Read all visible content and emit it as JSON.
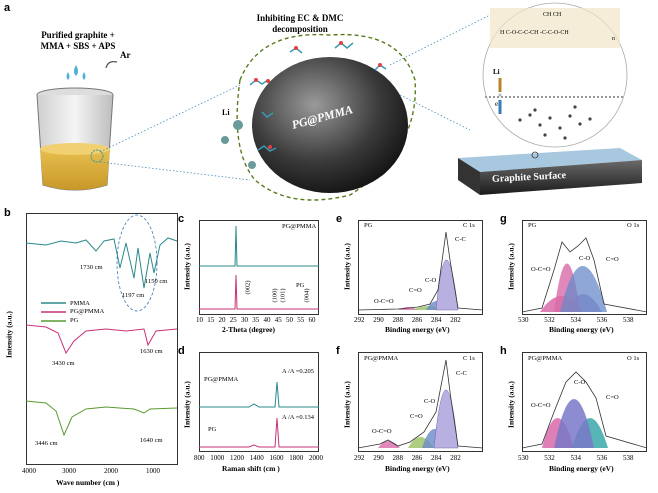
{
  "panels": {
    "a": {
      "letter": "a",
      "beaker_label_line1": "Purified graphite +",
      "beaker_label_line2": "MMA + SBS + APS",
      "gas": "Ar",
      "inhibit_line1": "Inhibiting EC & DMC",
      "inhibit_line2": "decomposition",
      "particle_label": "PG@PMMA",
      "li_label": "Li",
      "surface_label": "Graphite Surface",
      "inset_li": "Li",
      "inset_e": "e",
      "polymer_formula_top": "CH  CH",
      "polymer_formula_mid": "H C-O-C-C-CH -C-C-O-CH",
      "polymer_n": "n"
    },
    "b": {
      "letter": "b",
      "ylabel": "Intensity (a.u.)",
      "xlabel": "Wave number (cm )",
      "xticks": [
        "4000",
        "3000",
        "2000",
        "1000"
      ],
      "legend": [
        "PMMA",
        "PG@PMMA",
        "PG"
      ],
      "annotations": [
        "1730 cm",
        "1150 cm",
        "1197 cm",
        "3430 cm",
        "1630 cm",
        "3446 cm",
        "1640 cm"
      ]
    },
    "c": {
      "letter": "c",
      "ylabel": "Intensity (a.u.)",
      "xlabel": "2-Theta (degree)",
      "xticks": [
        "10",
        "15",
        "20",
        "25",
        "30",
        "35",
        "40",
        "45",
        "50",
        "55",
        "60"
      ],
      "series": [
        "PG@PMMA",
        "PG"
      ],
      "peaks": [
        "(002)",
        "(100)",
        "(101)",
        "(004)"
      ]
    },
    "d": {
      "letter": "d",
      "ylabel": "Intensity (a.u.)",
      "xlabel": "Raman shift (cm )",
      "xticks": [
        "800",
        "1000",
        "1200",
        "1400",
        "1600",
        "1800",
        "2000"
      ],
      "series": [
        "PG@PMMA",
        "PG"
      ],
      "ratio1": "A /A =0.205",
      "ratio2": "A /A =0.134"
    },
    "e": {
      "letter": "e",
      "sample": "PG",
      "core": "C 1s",
      "ylabel": "Intensity (a.u.)",
      "xlabel": "Binding energy (eV)",
      "xticks": [
        "292",
        "290",
        "288",
        "286",
        "284",
        "282"
      ],
      "peaks": [
        "O-C=O",
        "C=O",
        "C-O",
        "C-C"
      ]
    },
    "f": {
      "letter": "f",
      "sample": "PG@PMMA",
      "core": "C 1s",
      "ylabel": "Intensity (a.u.)",
      "xlabel": "Binding energy (eV)",
      "xticks": [
        "292",
        "290",
        "288",
        "286",
        "284",
        "282"
      ],
      "peaks": [
        "O-C=O",
        "C=O",
        "C-O",
        "C-C"
      ]
    },
    "g": {
      "letter": "g",
      "sample": "PG",
      "core": "O 1s",
      "ylabel": "Intensity (a.u.)",
      "xlabel": "Binding energy (eV)",
      "xticks": [
        "530",
        "532",
        "534",
        "536",
        "538"
      ],
      "peaks": [
        "O-C=O",
        "C-O",
        "C=O"
      ]
    },
    "h": {
      "letter": "h",
      "sample": "PG@PMMA",
      "core": "O 1s",
      "ylabel": "Intensity (a.u.)",
      "xlabel": "Binding energy (eV)",
      "xticks": [
        "530",
        "532",
        "534",
        "536",
        "538"
      ],
      "peaks": [
        "O-C=O",
        "C-O",
        "C=O"
      ]
    }
  },
  "chart_data": [
    {
      "type": "line",
      "panel": "b",
      "xlabel": "Wave number (cm )",
      "ylabel": "Intensity (a.u.)",
      "xlim": [
        4000,
        400
      ],
      "series": [
        {
          "name": "PMMA"
        },
        {
          "name": "PG@PMMA"
        },
        {
          "name": "PG"
        }
      ]
    },
    {
      "type": "line",
      "panel": "c",
      "xlabel": "2-Theta (degree)",
      "ylabel": "Intensity (a.u.)",
      "xlim": [
        10,
        60
      ],
      "series": [
        {
          "name": "PG@PMMA"
        },
        {
          "name": "PG"
        }
      ]
    },
    {
      "type": "line",
      "panel": "d",
      "xlabel": "Raman shift (cm )",
      "ylabel": "Intensity (a.u.)",
      "xlim": [
        800,
        2000
      ],
      "series": [
        {
          "name": "PG@PMMA"
        },
        {
          "name": "PG"
        }
      ]
    },
    {
      "type": "area",
      "panel": "e",
      "xlabel": "Binding energy (eV)",
      "ylabel": "Intensity (a.u.)",
      "xlim": [
        292,
        282
      ]
    },
    {
      "type": "area",
      "panel": "f",
      "xlabel": "Binding energy (eV)",
      "ylabel": "Intensity (a.u.)",
      "xlim": [
        292,
        282
      ]
    },
    {
      "type": "area",
      "panel": "g",
      "xlabel": "Binding energy (eV)",
      "ylabel": "Intensity (a.u.)",
      "xlim": [
        530,
        538
      ]
    },
    {
      "type": "area",
      "panel": "h",
      "xlabel": "Binding energy (eV)",
      "ylabel": "Intensity (a.u.)",
      "xlim": [
        530,
        538
      ]
    }
  ],
  "colors": {
    "teal": "#2a8a8a",
    "magenta": "#c8327a",
    "green": "#5a9a30",
    "purple": "#7a6ab0",
    "pink": "#d86aa8",
    "blue": "#6a8ac8",
    "gold": "#d8b040"
  }
}
